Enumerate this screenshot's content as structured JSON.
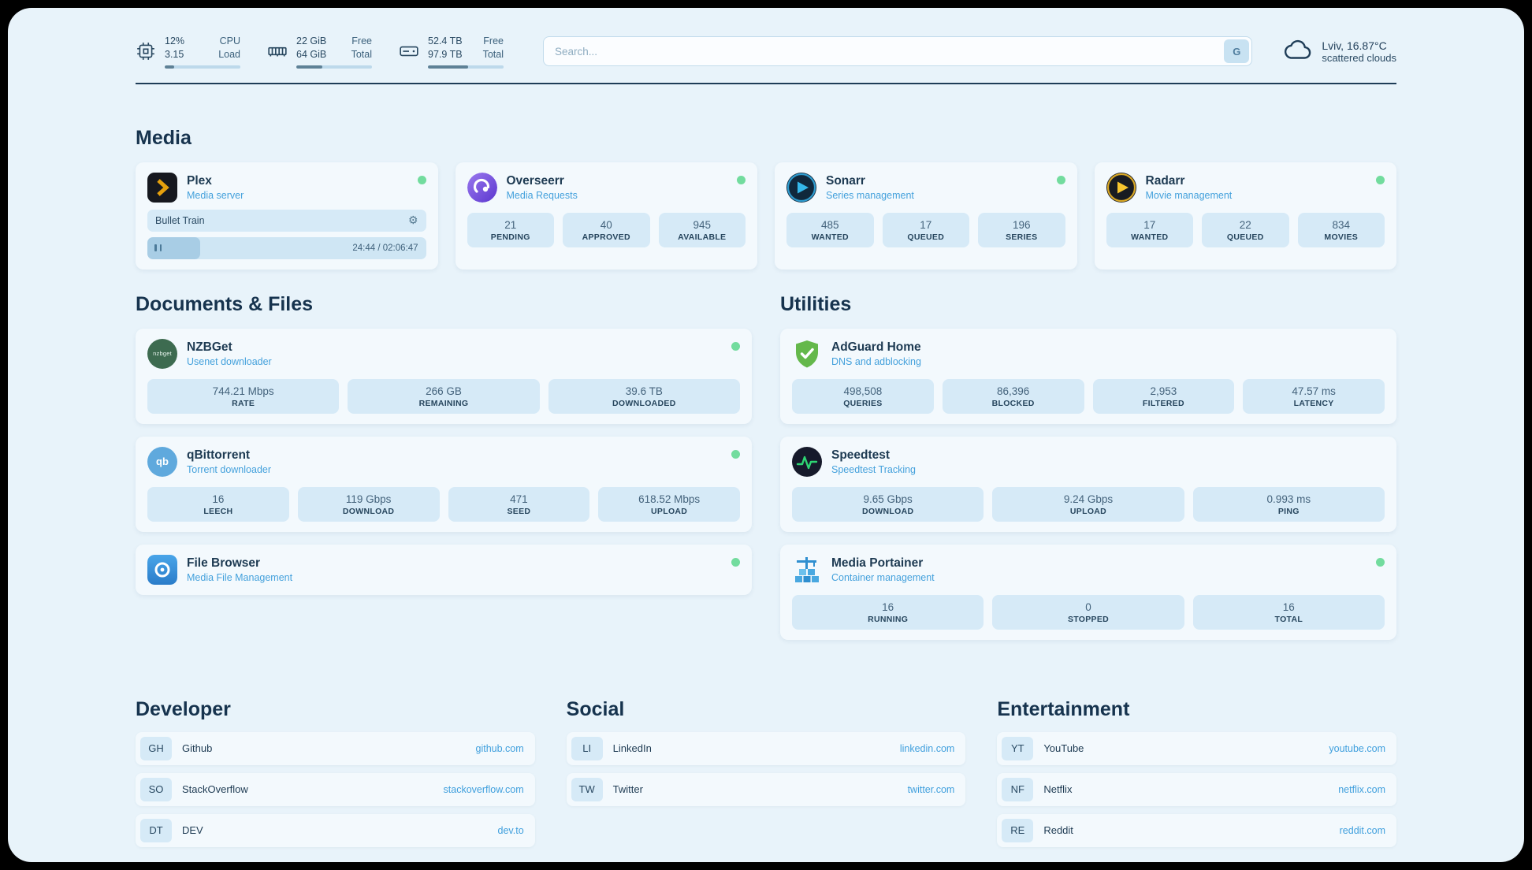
{
  "topbar": {
    "cpu": {
      "value_top": "12%",
      "value_bottom": "3.15",
      "label_top": "CPU",
      "label_bottom": "Load",
      "bar_pct": 12
    },
    "ram": {
      "value_top": "22 GiB",
      "value_bottom": "64 GiB",
      "label_top": "Free",
      "label_bottom": "Total",
      "bar_pct": 34
    },
    "disk": {
      "value_top": "52.4 TB",
      "value_bottom": "97.9 TB",
      "label_top": "Free",
      "label_bottom": "Total",
      "bar_pct": 53
    },
    "search": {
      "placeholder": "Search...",
      "button_label": "G"
    },
    "weather": {
      "location": "Lviv, 16.87°C",
      "condition": "scattered clouds"
    }
  },
  "sections": {
    "media": "Media",
    "documents": "Documents & Files",
    "utilities": "Utilities",
    "developer": "Developer",
    "social": "Social",
    "entertainment": "Entertainment"
  },
  "icons": {
    "gear": "⚙"
  },
  "apps": {
    "plex": {
      "name": "Plex",
      "subtitle": "Media server",
      "now_playing": "Bullet Train",
      "time": "24:44 / 02:06:47",
      "progress_pct": 19
    },
    "overseerr": {
      "name": "Overseerr",
      "subtitle": "Media Requests",
      "stats": [
        {
          "value": "21",
          "label": "PENDING"
        },
        {
          "value": "40",
          "label": "APPROVED"
        },
        {
          "value": "945",
          "label": "AVAILABLE"
        }
      ]
    },
    "sonarr": {
      "name": "Sonarr",
      "subtitle": "Series management",
      "stats": [
        {
          "value": "485",
          "label": "WANTED"
        },
        {
          "value": "17",
          "label": "QUEUED"
        },
        {
          "value": "196",
          "label": "SERIES"
        }
      ]
    },
    "radarr": {
      "name": "Radarr",
      "subtitle": "Movie management",
      "stats": [
        {
          "value": "17",
          "label": "WANTED"
        },
        {
          "value": "22",
          "label": "QUEUED"
        },
        {
          "value": "834",
          "label": "MOVIES"
        }
      ]
    },
    "nzbget": {
      "name": "NZBGet",
      "subtitle": "Usenet downloader",
      "icon_label": "nzbget",
      "stats": [
        {
          "value": "744.21 Mbps",
          "label": "RATE"
        },
        {
          "value": "266 GB",
          "label": "REMAINING"
        },
        {
          "value": "39.6 TB",
          "label": "DOWNLOADED"
        }
      ]
    },
    "qbittorrent": {
      "name": "qBittorrent",
      "subtitle": "Torrent downloader",
      "icon_label": "qb",
      "stats": [
        {
          "value": "16",
          "label": "LEECH"
        },
        {
          "value": "119 Gbps",
          "label": "DOWNLOAD"
        },
        {
          "value": "471",
          "label": "SEED"
        },
        {
          "value": "618.52 Mbps",
          "label": "UPLOAD"
        }
      ]
    },
    "filebrowser": {
      "name": "File Browser",
      "subtitle": "Media File Management"
    },
    "adguard": {
      "name": "AdGuard Home",
      "subtitle": "DNS and adblocking",
      "stats": [
        {
          "value": "498,508",
          "label": "QUERIES"
        },
        {
          "value": "86,396",
          "label": "BLOCKED"
        },
        {
          "value": "2,953",
          "label": "FILTERED"
        },
        {
          "value": "47.57 ms",
          "label": "LATENCY"
        }
      ]
    },
    "speedtest": {
      "name": "Speedtest",
      "subtitle": "Speedtest Tracking",
      "stats": [
        {
          "value": "9.65 Gbps",
          "label": "DOWNLOAD"
        },
        {
          "value": "9.24 Gbps",
          "label": "UPLOAD"
        },
        {
          "value": "0.993 ms",
          "label": "PING"
        }
      ]
    },
    "portainer": {
      "name": "Media Portainer",
      "subtitle": "Container management",
      "stats": [
        {
          "value": "16",
          "label": "RUNNING"
        },
        {
          "value": "0",
          "label": "STOPPED"
        },
        {
          "value": "16",
          "label": "TOTAL"
        }
      ]
    }
  },
  "bookmarks": {
    "developer": [
      {
        "abbr": "GH",
        "name": "Github",
        "url": "github.com"
      },
      {
        "abbr": "SO",
        "name": "StackOverflow",
        "url": "stackoverflow.com"
      },
      {
        "abbr": "DT",
        "name": "DEV",
        "url": "dev.to"
      }
    ],
    "social": [
      {
        "abbr": "LI",
        "name": "LinkedIn",
        "url": "linkedin.com"
      },
      {
        "abbr": "TW",
        "name": "Twitter",
        "url": "twitter.com"
      }
    ],
    "entertainment": [
      {
        "abbr": "YT",
        "name": "YouTube",
        "url": "youtube.com"
      },
      {
        "abbr": "NF",
        "name": "Netflix",
        "url": "netflix.com"
      },
      {
        "abbr": "RE",
        "name": "Reddit",
        "url": "reddit.com"
      }
    ]
  }
}
